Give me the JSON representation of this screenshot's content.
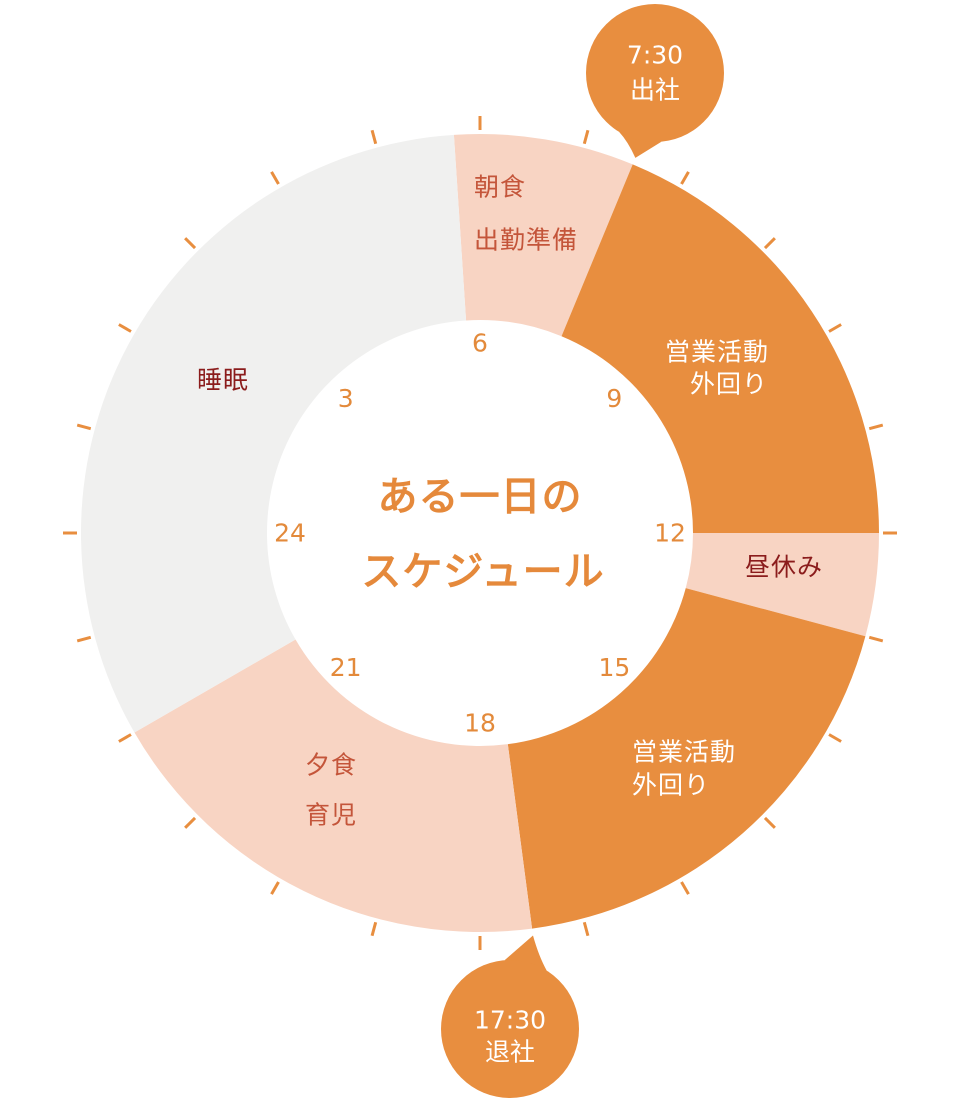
{
  "chart_data": {
    "type": "pie",
    "title": [
      "ある一日の",
      "スケジュール"
    ],
    "range": [
      0,
      24
    ],
    "tick_interval": 1,
    "hour_labels": [
      {
        "hour": 3,
        "label": "3"
      },
      {
        "hour": 6,
        "label": "6"
      },
      {
        "hour": 9,
        "label": "9"
      },
      {
        "hour": 12,
        "label": "12"
      },
      {
        "hour": 15,
        "label": "15"
      },
      {
        "hour": 18,
        "label": "18"
      },
      {
        "hour": 21,
        "label": "21"
      },
      {
        "hour": 24,
        "label": "24"
      }
    ],
    "segments": [
      {
        "label": [
          "朝食",
          "出勤準備"
        ],
        "start": 5.75,
        "end": 7.5,
        "color": "#f8d4c3",
        "text_color": "#c4553a"
      },
      {
        "label": [
          "営業活動",
          "外回り"
        ],
        "start": 7.5,
        "end": 12,
        "color": "#e88e3f",
        "text_color": "#ffffff"
      },
      {
        "label": [
          "昼休み"
        ],
        "start": 12,
        "end": 13,
        "color": "#f8d4c3",
        "text_color": "#8b1c1c"
      },
      {
        "label": [
          "営業活動",
          "外回り"
        ],
        "start": 13,
        "end": 17.5,
        "color": "#e88e3f",
        "text_color": "#ffffff"
      },
      {
        "label": [
          "夕食",
          "育児"
        ],
        "start": 17.5,
        "end": 22,
        "color": "#f8d4c3",
        "text_color": "#c4553a"
      },
      {
        "label": [
          "睡眠"
        ],
        "start": 22,
        "end": 5.75,
        "color": "#f0f0ef",
        "text_color": "#8b1c1c"
      }
    ],
    "callouts": [
      {
        "time": "7:30",
        "label": "出社",
        "hour": 7.5
      },
      {
        "time": "17:30",
        "label": "退社",
        "hour": 17.5
      }
    ]
  },
  "colors": {
    "accent": "#e88e3f",
    "hour_label": "#e38a3b",
    "title": "#e5893b",
    "callout_text": "#ffffff"
  }
}
